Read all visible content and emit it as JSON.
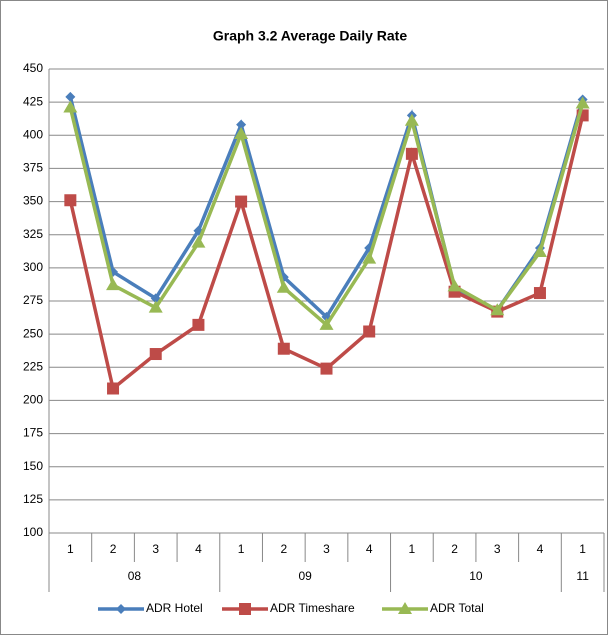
{
  "chart_data": {
    "type": "line",
    "title": "Graph 3.2 Average Daily Rate",
    "groups": [
      {
        "label": "08",
        "categories": [
          "1",
          "2",
          "3",
          "4"
        ]
      },
      {
        "label": "09",
        "categories": [
          "1",
          "2",
          "3",
          "4"
        ]
      },
      {
        "label": "10",
        "categories": [
          "1",
          "2",
          "3",
          "4"
        ]
      },
      {
        "label": "11",
        "categories": [
          "1"
        ]
      }
    ],
    "series": [
      {
        "name": "ADR Hotel",
        "color": "#4a7ebb",
        "marker": "diamond",
        "values": [
          429,
          297,
          277,
          328,
          408,
          293,
          263,
          315,
          415,
          285,
          268,
          315,
          427
        ]
      },
      {
        "name": "ADR Timeshare",
        "color": "#be4b48",
        "marker": "square",
        "values": [
          351,
          209,
          235,
          257,
          350,
          239,
          224,
          252,
          386,
          282,
          267,
          281,
          415
        ]
      },
      {
        "name": "ADR Total",
        "color": "#98b954",
        "marker": "triangle",
        "values": [
          421,
          287,
          270,
          319,
          401,
          285,
          257,
          307,
          411,
          286,
          268,
          312,
          424
        ]
      }
    ],
    "ylim": [
      100,
      450
    ],
    "yticks": [
      100,
      125,
      150,
      175,
      200,
      225,
      250,
      275,
      300,
      325,
      350,
      375,
      400,
      425,
      450
    ],
    "grid": true,
    "legend": "bottom"
  }
}
